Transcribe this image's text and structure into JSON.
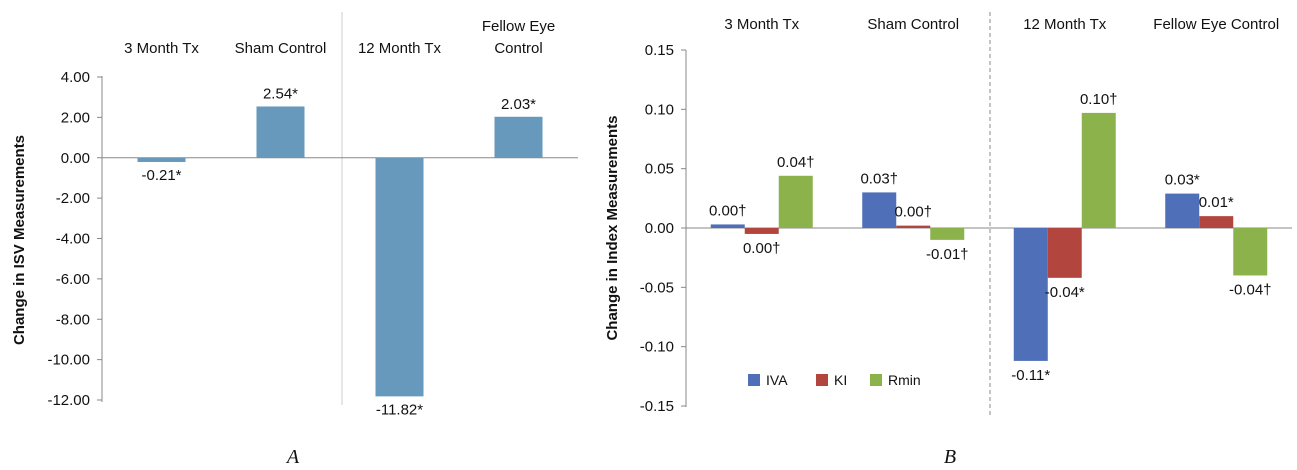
{
  "colors": {
    "panel_a_bar": "#6699BB",
    "IVA": "#4F6FB8",
    "KI": "#B2463F",
    "Rmin": "#8CB24C",
    "axis": "#888888"
  },
  "panel_a": {
    "letter": "A",
    "ylabel": "Change in ISV Measurements",
    "categories": [
      "3 Month Tx",
      "Sham Control",
      "12 Month Tx",
      "Fellow Eye Control"
    ],
    "category_lines": [
      [
        "3 Month Tx"
      ],
      [
        "Sham Control"
      ],
      [
        "12 Month Tx"
      ],
      [
        "Fellow Eye",
        "Control"
      ]
    ],
    "yticks": [
      "4.00",
      "2.00",
      "0.00",
      "-2.00",
      "-4.00",
      "-6.00",
      "-8.00",
      "-10.00",
      "-12.00"
    ],
    "labels": [
      "-0.21*",
      "2.54*",
      "-11.82*",
      "2.03*"
    ]
  },
  "panel_b": {
    "letter": "B",
    "ylabel": "Change in Index Measurements",
    "categories": [
      "3 Month Tx",
      "Sham Control",
      "12 Month Tx",
      "Fellow Eye Control"
    ],
    "yticks": [
      "0.15",
      "0.10",
      "0.05",
      "0.00",
      "-0.05",
      "-0.10",
      "-0.15"
    ],
    "legend": [
      "IVA",
      "KI",
      "Rmin"
    ],
    "labels": [
      [
        "0.00†",
        "0.00†",
        "0.04†"
      ],
      [
        "0.03†",
        "0.00†",
        "-0.01†"
      ],
      [
        "-0.11*",
        "-0.04*",
        "0.10†"
      ],
      [
        "0.03*",
        "0.01*",
        "-0.04†"
      ]
    ]
  },
  "chart_data": [
    {
      "type": "bar",
      "title": "",
      "xlabel": "",
      "ylabel": "Change in ISV Measurements",
      "categories": [
        "3 Month Tx",
        "Sham Control",
        "12 Month Tx",
        "Fellow Eye Control"
      ],
      "values": [
        -0.21,
        2.54,
        -11.82,
        2.03
      ],
      "ylim": [
        -12,
        4
      ],
      "grid": false
    },
    {
      "type": "bar",
      "title": "",
      "xlabel": "",
      "ylabel": "Change in Index Measurements",
      "categories": [
        "3 Month Tx",
        "Sham Control",
        "12 Month Tx",
        "Fellow Eye Control"
      ],
      "series": [
        {
          "name": "IVA",
          "values": [
            0.003,
            0.03,
            -0.112,
            0.029
          ]
        },
        {
          "name": "KI",
          "values": [
            -0.005,
            0.002,
            -0.042,
            0.01
          ]
        },
        {
          "name": "Rmin",
          "values": [
            0.044,
            -0.01,
            0.097,
            -0.04
          ]
        }
      ],
      "ylim": [
        -0.15,
        0.15
      ],
      "legend": "bottom-left",
      "grid": false
    }
  ]
}
